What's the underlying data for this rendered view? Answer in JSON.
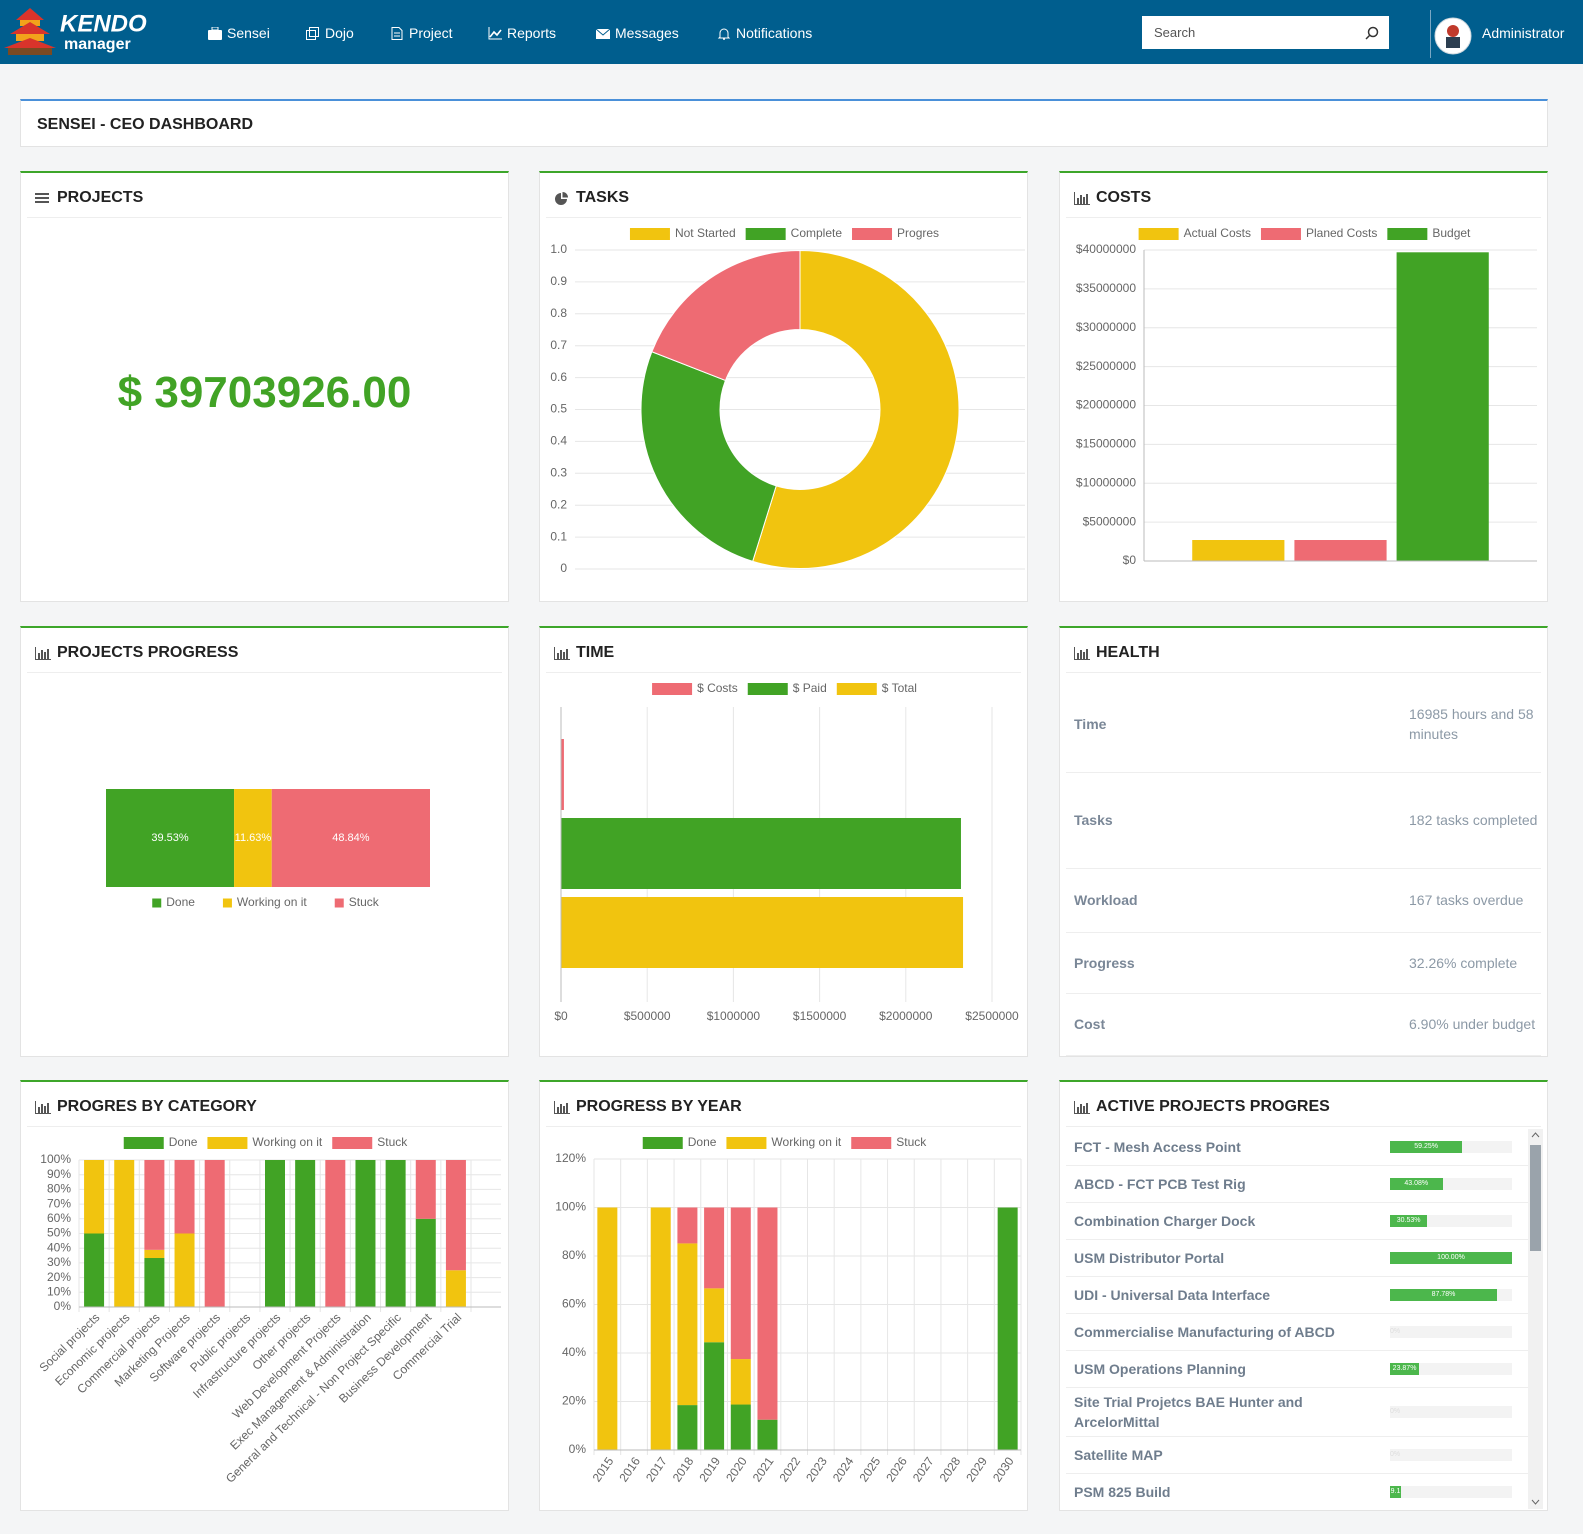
{
  "nav": {
    "brand_top": "KENDO",
    "brand_bottom": "manager",
    "items": [
      "Sensei",
      "Dojo",
      "Project",
      "Reports",
      "Messages",
      "Notifications"
    ],
    "search_placeholder": "Search",
    "user": "Administrator"
  },
  "page_title": "SENSEI - CEO DASHBOARD",
  "projects_panel": {
    "title": "PROJECTS",
    "total": "$ 39703926.00"
  },
  "health": {
    "title": "HEALTH",
    "rows": [
      {
        "label": "Time",
        "value": "16985 hours and 58 minutes"
      },
      {
        "label": "Tasks",
        "value": "182 tasks completed"
      },
      {
        "label": "Workload",
        "value": "167 tasks overdue"
      },
      {
        "label": "Progress",
        "value": "32.26% complete"
      },
      {
        "label": "Cost",
        "value": "6.90% under budget"
      }
    ]
  },
  "active_projects": {
    "title": "ACTIVE PROJECTS PROGRES",
    "color": "#4cb74c",
    "rows": [
      {
        "name": "FCT - Mesh Access Point",
        "value": 59.25,
        "value_label": "59.25%"
      },
      {
        "name": "ABCD - FCT PCB Test Rig",
        "value": 43.08,
        "value_label": "43.08%"
      },
      {
        "name": "Combination Charger Dock",
        "value": 30.53,
        "value_label": "30.53%"
      },
      {
        "name": "USM Distributor Portal",
        "value": 100,
        "value_label": "100.00%"
      },
      {
        "name": "UDI - Universal Data Interface",
        "value": 87.78,
        "value_label": "87.78%"
      },
      {
        "name": "Commercialise Manufacturing of ABCD",
        "value": 0,
        "value_label": "0%"
      },
      {
        "name": "USM Operations Planning",
        "value": 23.87,
        "value_label": "23.87%"
      },
      {
        "name": "Site Trial Projetcs BAE Hunter and ArcelorMittal",
        "value": 0,
        "value_label": "0%"
      },
      {
        "name": "Satellite MAP",
        "value": 0,
        "value_label": "0%"
      },
      {
        "name": "PSM 825 Build",
        "value": 9.1,
        "value_label": "9.1"
      }
    ]
  },
  "chart_data": [
    {
      "type": "donut",
      "title": "TASKS",
      "categories": [
        "Not Started",
        "Complete",
        "Progres"
      ],
      "values": [
        382,
        182,
        133
      ],
      "colors": [
        "#f1c40f",
        "#41a325",
        "#ee6b73"
      ],
      "ylim": [
        0,
        1
      ],
      "yticks": [
        0,
        0.1,
        0.2,
        0.3,
        0.4,
        0.5,
        0.6,
        0.7,
        0.8,
        0.9,
        {
          "value": 1,
          "label": "1.0"
        }
      ],
      "grid": true,
      "legend_position": "top"
    },
    {
      "type": "bar",
      "title": "COSTS",
      "categories": [
        null
      ],
      "series": [
        {
          "name": "Actual Costs",
          "color": "#f1c40f",
          "values": [
            2700000
          ]
        },
        {
          "name": "Planed Costs",
          "color": "#ee6b73",
          "values": [
            2700000
          ]
        },
        {
          "name": "Budget",
          "color": "#41a325",
          "values": [
            39703926
          ]
        }
      ],
      "ylim": [
        0,
        40000000
      ],
      "yticks": [
        {
          "value": 0,
          "label": "$0"
        },
        {
          "value": 5000000,
          "label": "$5000000"
        },
        {
          "value": 10000000,
          "label": "$10000000"
        },
        {
          "value": 15000000,
          "label": "$15000000"
        },
        {
          "value": 20000000,
          "label": "$20000000"
        },
        {
          "value": 25000000,
          "label": "$25000000"
        },
        {
          "value": 30000000,
          "label": "$30000000"
        },
        {
          "value": 35000000,
          "label": "$35000000"
        },
        {
          "value": 40000000,
          "label": "$40000000"
        }
      ],
      "grid": true,
      "legend_position": "top"
    },
    {
      "type": "stacked_bar_h",
      "title": "PROJECTS PROGRESS",
      "categories": [
        null
      ],
      "series": [
        {
          "name": "Done",
          "color": "#41a325",
          "values": [
            39.53
          ],
          "value_labels": [
            "39.53%"
          ]
        },
        {
          "name": "Working on it",
          "color": "#f1c40f",
          "values": [
            11.63
          ],
          "value_labels": [
            "11.63%"
          ]
        },
        {
          "name": "Stuck",
          "color": "#ee6b73",
          "values": [
            48.84
          ],
          "value_labels": [
            "48.84%"
          ]
        }
      ],
      "xlim": [
        0,
        100
      ],
      "legend_position": "bottom"
    },
    {
      "type": "hbar",
      "title": "TIME",
      "series": [
        {
          "name": "$ Costs",
          "color": "#ee6b73",
          "values": [
            17000
          ]
        },
        {
          "name": "$ Paid",
          "color": "#41a325",
          "values": [
            2320000
          ]
        },
        {
          "name": "$ Total",
          "color": "#f1c40f",
          "values": [
            2332000
          ]
        }
      ],
      "xlim": [
        0,
        2500000
      ],
      "xticks": [
        {
          "value": 0,
          "label": "$0"
        },
        {
          "value": 500000,
          "label": "$500000"
        },
        {
          "value": 1000000,
          "label": "$1000000"
        },
        {
          "value": 1500000,
          "label": "$1500000"
        },
        {
          "value": 2000000,
          "label": "$2000000"
        },
        {
          "value": 2500000,
          "label": "$2500000"
        }
      ],
      "grid": true,
      "legend_position": "top"
    },
    {
      "type": "stacked_bar",
      "title": "PROGRES BY CATEGORY",
      "categories": [
        "Social projects",
        "Economic projects",
        "Commercial projects",
        "Marketing Projects",
        "Software projects",
        "Public projects",
        "Infrastructure projects",
        "Other projects",
        "Web Development Projects",
        "Exec Management & Administration",
        "General and Technical - Non Project Specific",
        "Business Development",
        "Commercial Trial"
      ],
      "series": [
        {
          "name": "Done",
          "color": "#41a325",
          "values": [
            50,
            0,
            33.33,
            0,
            0,
            0,
            100,
            100,
            0,
            100,
            100,
            60,
            0
          ]
        },
        {
          "name": "Working on it",
          "color": "#f1c40f",
          "values": [
            50,
            100,
            5.56,
            50,
            0,
            0,
            0,
            0,
            0,
            0,
            0,
            0,
            25
          ]
        },
        {
          "name": "Stuck",
          "color": "#ee6b73",
          "values": [
            0,
            0,
            61.11,
            50,
            100,
            0,
            0,
            0,
            100,
            0,
            0,
            40,
            75
          ]
        }
      ],
      "ylim": [
        0,
        100
      ],
      "yticks": [
        {
          "value": 0,
          "label": "0%"
        },
        {
          "value": 10,
          "label": "10%"
        },
        {
          "value": 20,
          "label": "20%"
        },
        {
          "value": 30,
          "label": "30%"
        },
        {
          "value": 40,
          "label": "40%"
        },
        {
          "value": 50,
          "label": "50%"
        },
        {
          "value": 60,
          "label": "60%"
        },
        {
          "value": 70,
          "label": "70%"
        },
        {
          "value": 80,
          "label": "80%"
        },
        {
          "value": 90,
          "label": "90%"
        },
        {
          "value": 100,
          "label": "100%"
        }
      ],
      "grid": true,
      "legend_position": "top"
    },
    {
      "type": "stacked_bar",
      "title": "PROGRESS BY YEAR",
      "categories": [
        "2015",
        "2016",
        "2017",
        "2018",
        "2019",
        "2020",
        "2021",
        "2022",
        "2023",
        "2024",
        "2025",
        "2026",
        "2027",
        "2028",
        "2029",
        "2030"
      ],
      "series": [
        {
          "name": "Done",
          "color": "#41a325",
          "values": [
            0,
            0,
            0,
            18.52,
            44.44,
            18.75,
            12.5,
            0,
            0,
            0,
            0,
            0,
            0,
            0,
            0,
            100
          ]
        },
        {
          "name": "Working on it",
          "color": "#f1c40f",
          "values": [
            100,
            0,
            100,
            66.67,
            22.22,
            18.75,
            0,
            0,
            0,
            0,
            0,
            0,
            0,
            0,
            0,
            0
          ]
        },
        {
          "name": "Stuck",
          "color": "#ee6b73",
          "values": [
            0,
            0,
            0,
            14.81,
            33.33,
            62.5,
            87.5,
            0,
            0,
            0,
            0,
            0,
            0,
            0,
            0,
            0
          ]
        }
      ],
      "ylim": [
        0,
        120
      ],
      "yticks": [
        {
          "value": 0,
          "label": "0%"
        },
        {
          "value": 20,
          "label": "20%"
        },
        {
          "value": 40,
          "label": "40%"
        },
        {
          "value": 60,
          "label": "60%"
        },
        {
          "value": 80,
          "label": "80%"
        },
        {
          "value": 100,
          "label": "100%"
        },
        {
          "value": 120,
          "label": "120%"
        }
      ],
      "grid": true,
      "legend_position": "top"
    }
  ]
}
